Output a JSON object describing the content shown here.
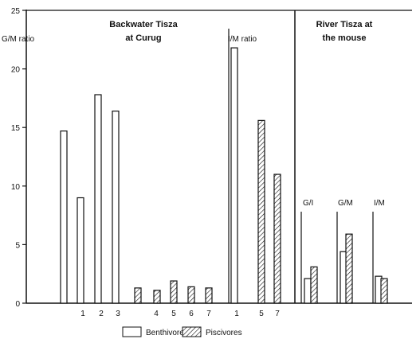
{
  "chart_data": {
    "type": "bar",
    "ylim": [
      0,
      25
    ],
    "yticks": [
      "0",
      "5",
      "10",
      "15",
      "20",
      "25"
    ],
    "ytick_values": [
      0,
      5,
      10,
      15,
      20,
      25
    ],
    "grid": false,
    "legend_position": "bottom",
    "panels": {
      "backwater_title": "Backwater Tisza",
      "backwater_subtitle": "at Curug",
      "river_title": "River Tisza  at",
      "river_subtitle": "the mouse"
    },
    "annotations": {
      "gm_ratio": "G/M ratio",
      "im_ratio": "I/M ratio",
      "gi": "G/I",
      "gm": "G/M",
      "im": "I/M"
    },
    "x_tick_labels": [
      "1",
      "2",
      "3",
      "4",
      "5",
      "6",
      "7",
      "1",
      "5",
      "7"
    ],
    "legend": {
      "benthivores": "Benthivores",
      "piscivores": "Piscivores"
    },
    "bars": [
      {
        "group": "Backwater G/M",
        "category": "",
        "series": "Benthivores",
        "value": 14.7
      },
      {
        "group": "Backwater G/M",
        "category": "1",
        "series": "Benthivores",
        "value": 9.0
      },
      {
        "group": "Backwater G/M",
        "category": "2",
        "series": "Benthivores",
        "value": 17.8
      },
      {
        "group": "Backwater G/M",
        "category": "3",
        "series": "Benthivores",
        "value": 16.4
      },
      {
        "group": "Backwater G/M",
        "category": "",
        "series": "Piscivores",
        "value": 1.3
      },
      {
        "group": "Backwater G/M",
        "category": "4",
        "series": "Piscivores",
        "value": 1.1
      },
      {
        "group": "Backwater G/M",
        "category": "5",
        "series": "Piscivores",
        "value": 1.9
      },
      {
        "group": "Backwater G/M",
        "category": "6",
        "series": "Piscivores",
        "value": 1.4
      },
      {
        "group": "Backwater G/M",
        "category": "7",
        "series": "Piscivores",
        "value": 1.3
      },
      {
        "group": "Backwater I/M",
        "category": "1",
        "series": "Benthivores",
        "value": 21.8
      },
      {
        "group": "Backwater I/M",
        "category": "5",
        "series": "Piscivores",
        "value": 15.6
      },
      {
        "group": "Backwater I/M",
        "category": "7",
        "series": "Piscivores",
        "value": 11.0
      },
      {
        "group": "River G/I",
        "category": "",
        "series": "Benthivores",
        "value": 2.1
      },
      {
        "group": "River G/I",
        "category": "",
        "series": "Piscivores",
        "value": 3.1
      },
      {
        "group": "River G/M",
        "category": "",
        "series": "Benthivores",
        "value": 4.4
      },
      {
        "group": "River G/M",
        "category": "",
        "series": "Piscivores",
        "value": 5.9
      },
      {
        "group": "River I/M",
        "category": "",
        "series": "Benthivores",
        "value": 2.3
      },
      {
        "group": "River I/M",
        "category": "",
        "series": "Piscivores",
        "value": 2.1
      }
    ]
  }
}
